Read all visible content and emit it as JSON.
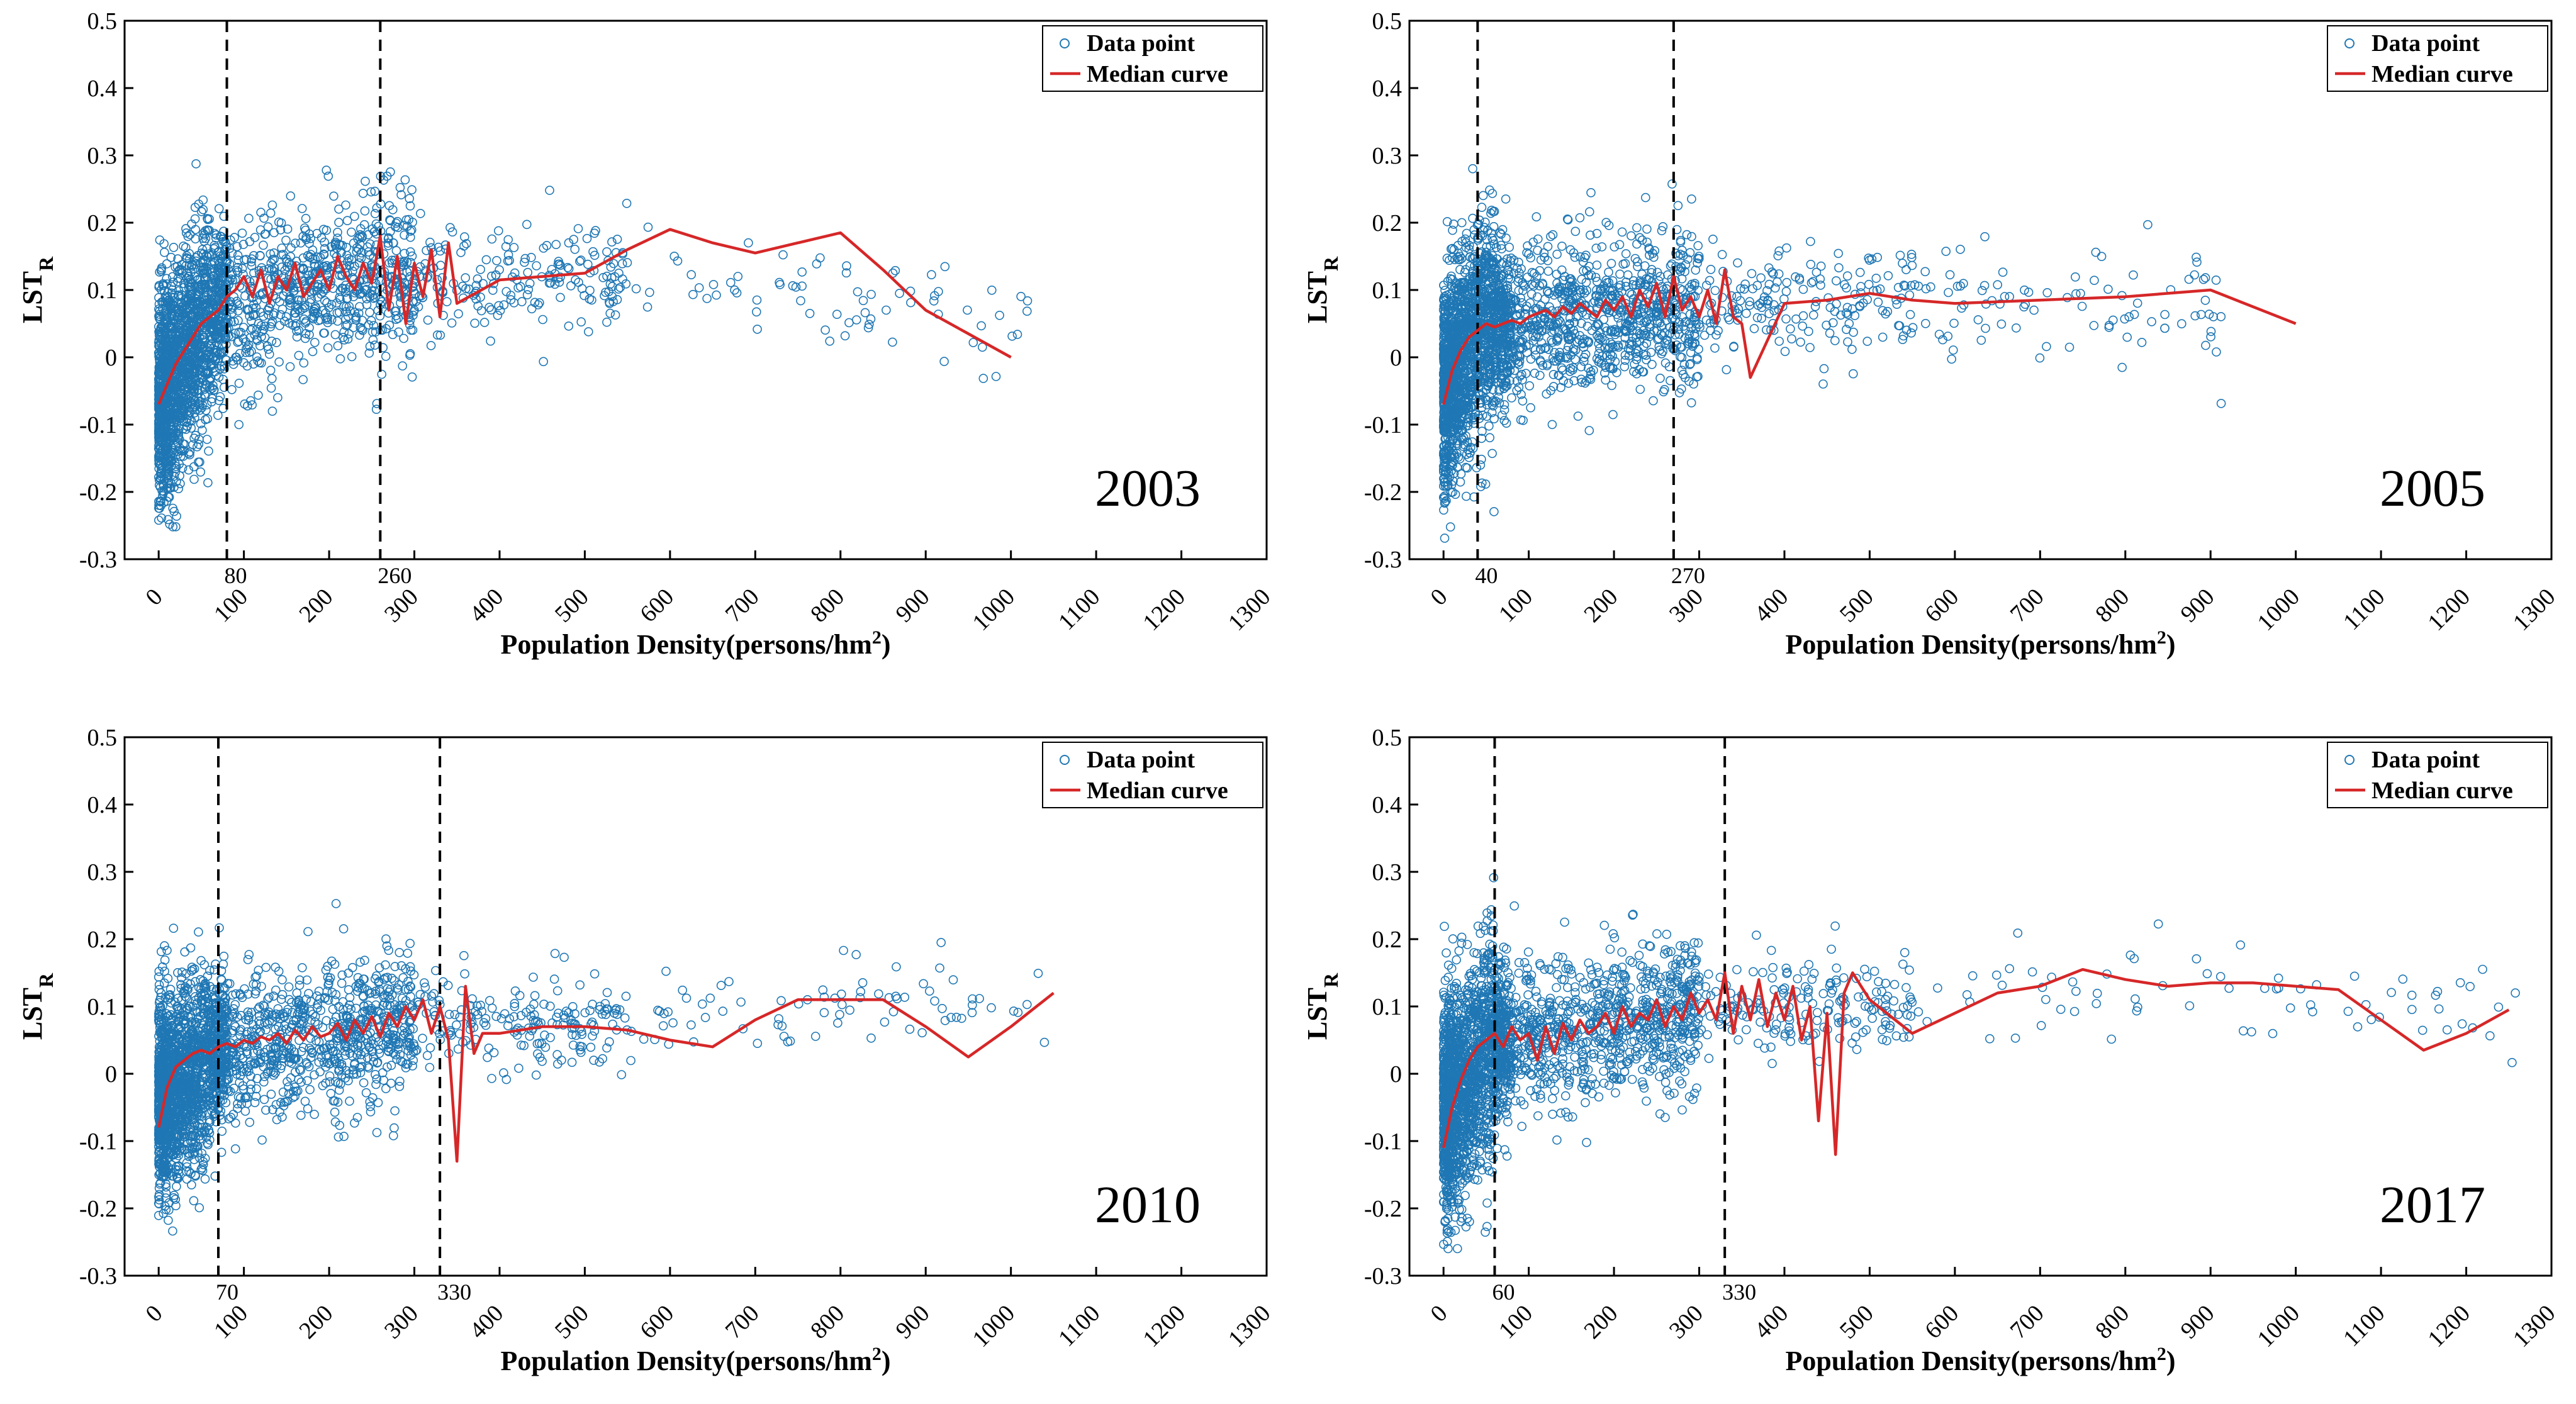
{
  "colors": {
    "points": "#1f77b4",
    "median": "#d62728",
    "threshold": "#000000"
  },
  "legend": {
    "points_label": "Data point",
    "median_label": "Median curve",
    "placement": "top-right"
  },
  "chart_data": [
    {
      "type": "scatter",
      "year_label": "2003",
      "xlabel": "Population Density(persons/hm",
      "xlabel_sup": "2",
      "xlabel_close": ")",
      "ylabel": "LST",
      "ylabel_sub": "R",
      "xlim": [
        -40,
        1300
      ],
      "ylim": [
        -0.3,
        0.5
      ],
      "x_ticks": [
        "0",
        "100",
        "200",
        "300",
        "400",
        "500",
        "600",
        "700",
        "800",
        "900",
        "1000",
        "1100",
        "1200",
        "1300"
      ],
      "y_ticks": [
        "-0.3",
        "-0.2",
        "-0.1",
        "0",
        "0.1",
        "0.2",
        "0.3",
        "0.4",
        "0.5"
      ],
      "thresholds": [
        {
          "value": 80,
          "label": "80"
        },
        {
          "value": 260,
          "label": "260"
        }
      ],
      "series": [
        {
          "name": "Median curve",
          "x": [
            0,
            10,
            20,
            30,
            40,
            50,
            60,
            70,
            80,
            90,
            100,
            110,
            120,
            130,
            140,
            150,
            160,
            170,
            180,
            190,
            200,
            210,
            220,
            230,
            240,
            250,
            260,
            270,
            280,
            290,
            300,
            310,
            320,
            330,
            340,
            350,
            400,
            450,
            500,
            550,
            600,
            650,
            700,
            750,
            800,
            850,
            900,
            950,
            1000
          ],
          "y": [
            -0.07,
            -0.04,
            -0.01,
            0.01,
            0.03,
            0.05,
            0.06,
            0.07,
            0.09,
            0.1,
            0.12,
            0.09,
            0.13,
            0.08,
            0.12,
            0.1,
            0.14,
            0.09,
            0.11,
            0.13,
            0.1,
            0.15,
            0.12,
            0.1,
            0.14,
            0.11,
            0.18,
            0.07,
            0.15,
            0.05,
            0.14,
            0.09,
            0.16,
            0.06,
            0.17,
            0.08,
            0.115,
            0.12,
            0.125,
            0.16,
            0.19,
            0.17,
            0.155,
            0.17,
            0.185,
            0.13,
            0.07,
            0.035,
            0.0
          ]
        }
      ],
      "scatter_profile": {
        "base": [
          [
            0,
            -0.07
          ],
          [
            40,
            0.03
          ],
          [
            80,
            0.08
          ],
          [
            150,
            0.1
          ],
          [
            260,
            0.12
          ],
          [
            400,
            0.11
          ],
          [
            600,
            0.13
          ],
          [
            1000,
            0.05
          ]
        ],
        "spread": 0.12,
        "count": 2600,
        "max_x": 1020
      }
    },
    {
      "type": "scatter",
      "year_label": "2005",
      "xlabel": "Population Density(persons/hm",
      "xlabel_sup": "2",
      "xlabel_close": ")",
      "ylabel": "LST",
      "ylabel_sub": "R",
      "xlim": [
        -40,
        1300
      ],
      "ylim": [
        -0.3,
        0.5
      ],
      "x_ticks": [
        "0",
        "100",
        "200",
        "300",
        "400",
        "500",
        "600",
        "700",
        "800",
        "900",
        "1000",
        "1100",
        "1200",
        "1300"
      ],
      "y_ticks": [
        "-0.3",
        "-0.2",
        "-0.1",
        "0",
        "0.1",
        "0.2",
        "0.3",
        "0.4",
        "0.5"
      ],
      "thresholds": [
        {
          "value": 40,
          "label": "40"
        },
        {
          "value": 270,
          "label": "270"
        }
      ],
      "series": [
        {
          "name": "Median curve",
          "x": [
            0,
            10,
            20,
            30,
            40,
            50,
            60,
            70,
            80,
            90,
            100,
            110,
            120,
            130,
            140,
            150,
            160,
            170,
            180,
            190,
            200,
            210,
            220,
            230,
            240,
            250,
            260,
            270,
            280,
            290,
            300,
            310,
            320,
            330,
            340,
            350,
            360,
            400,
            450,
            500,
            550,
            600,
            700,
            800,
            900,
            1000
          ],
          "y": [
            -0.07,
            -0.02,
            0.01,
            0.03,
            0.04,
            0.05,
            0.045,
            0.05,
            0.055,
            0.05,
            0.06,
            0.065,
            0.07,
            0.06,
            0.075,
            0.065,
            0.08,
            0.07,
            0.06,
            0.085,
            0.07,
            0.09,
            0.06,
            0.1,
            0.075,
            0.11,
            0.06,
            0.12,
            0.07,
            0.09,
            0.06,
            0.1,
            0.05,
            0.13,
            0.06,
            0.05,
            -0.03,
            0.08,
            0.085,
            0.095,
            0.085,
            0.08,
            0.085,
            0.09,
            0.1,
            0.05
          ]
        }
      ],
      "scatter_profile": {
        "base": [
          [
            0,
            -0.05
          ],
          [
            40,
            0.04
          ],
          [
            150,
            0.06
          ],
          [
            270,
            0.07
          ],
          [
            400,
            0.08
          ],
          [
            700,
            0.08
          ],
          [
            1000,
            0.05
          ]
        ],
        "spread": 0.12,
        "count": 2800,
        "max_x": 920
      }
    },
    {
      "type": "scatter",
      "year_label": "2010",
      "xlabel": "Population Density(persons/hm",
      "xlabel_sup": "2",
      "xlabel_close": ")",
      "ylabel": "LST",
      "ylabel_sub": "R",
      "xlim": [
        -40,
        1300
      ],
      "ylim": [
        -0.3,
        0.5
      ],
      "x_ticks": [
        "0",
        "100",
        "200",
        "300",
        "400",
        "500",
        "600",
        "700",
        "800",
        "900",
        "1000",
        "1100",
        "1200",
        "1300"
      ],
      "y_ticks": [
        "-0.3",
        "-0.2",
        "-0.1",
        "0",
        "0.1",
        "0.2",
        "0.3",
        "0.4",
        "0.5"
      ],
      "thresholds": [
        {
          "value": 70,
          "label": "70"
        },
        {
          "value": 330,
          "label": "330"
        }
      ],
      "series": [
        {
          "name": "Median curve",
          "x": [
            0,
            10,
            20,
            30,
            40,
            50,
            60,
            70,
            80,
            90,
            100,
            110,
            120,
            130,
            140,
            150,
            160,
            170,
            180,
            190,
            200,
            210,
            220,
            230,
            240,
            250,
            260,
            270,
            280,
            290,
            300,
            310,
            320,
            330,
            340,
            350,
            360,
            370,
            380,
            400,
            450,
            500,
            550,
            600,
            650,
            700,
            750,
            800,
            850,
            900,
            950,
            1000,
            1050
          ],
          "y": [
            -0.08,
            -0.02,
            0.01,
            0.02,
            0.03,
            0.035,
            0.03,
            0.04,
            0.045,
            0.04,
            0.05,
            0.045,
            0.055,
            0.05,
            0.06,
            0.045,
            0.065,
            0.05,
            0.07,
            0.055,
            0.06,
            0.075,
            0.05,
            0.08,
            0.06,
            0.085,
            0.055,
            0.09,
            0.07,
            0.1,
            0.08,
            0.11,
            0.06,
            0.1,
            0.05,
            -0.13,
            0.13,
            0.03,
            0.06,
            0.06,
            0.07,
            0.07,
            0.065,
            0.05,
            0.04,
            0.08,
            0.11,
            0.11,
            0.11,
            0.07,
            0.025,
            0.07,
            0.12
          ]
        }
      ],
      "scatter_profile": {
        "base": [
          [
            0,
            -0.04
          ],
          [
            70,
            0.03
          ],
          [
            200,
            0.06
          ],
          [
            330,
            0.08
          ],
          [
            500,
            0.07
          ],
          [
            800,
            0.1
          ],
          [
            1050,
            0.12
          ]
        ],
        "spread": 0.11,
        "count": 2700,
        "max_x": 1050
      }
    },
    {
      "type": "scatter",
      "year_label": "2017",
      "xlabel": "Population Density(persons/hm",
      "xlabel_sup": "2",
      "xlabel_close": ")",
      "ylabel": "LST",
      "ylabel_sub": "R",
      "xlim": [
        -40,
        1300
      ],
      "ylim": [
        -0.3,
        0.5
      ],
      "x_ticks": [
        "0",
        "100",
        "200",
        "300",
        "400",
        "500",
        "600",
        "700",
        "800",
        "900",
        "1000",
        "1100",
        "1200",
        "1300"
      ],
      "y_ticks": [
        "-0.3",
        "-0.2",
        "-0.1",
        "0",
        "0.1",
        "0.2",
        "0.3",
        "0.4",
        "0.5"
      ],
      "thresholds": [
        {
          "value": 60,
          "label": "60"
        },
        {
          "value": 330,
          "label": "330"
        }
      ],
      "series": [
        {
          "name": "Median curve",
          "x": [
            0,
            10,
            20,
            30,
            40,
            50,
            60,
            70,
            80,
            90,
            100,
            110,
            120,
            130,
            140,
            150,
            160,
            170,
            180,
            190,
            200,
            210,
            220,
            230,
            240,
            250,
            260,
            270,
            280,
            290,
            300,
            310,
            320,
            330,
            340,
            350,
            360,
            370,
            380,
            390,
            400,
            410,
            420,
            430,
            440,
            450,
            460,
            470,
            480,
            500,
            550,
            600,
            650,
            700,
            750,
            800,
            850,
            900,
            950,
            1000,
            1050,
            1100,
            1150,
            1200,
            1250
          ],
          "y": [
            -0.11,
            -0.05,
            -0.01,
            0.02,
            0.04,
            0.05,
            0.06,
            0.04,
            0.07,
            0.05,
            0.06,
            0.02,
            0.07,
            0.03,
            0.075,
            0.05,
            0.08,
            0.06,
            0.07,
            0.09,
            0.06,
            0.1,
            0.07,
            0.09,
            0.08,
            0.11,
            0.07,
            0.1,
            0.08,
            0.12,
            0.09,
            0.11,
            0.08,
            0.15,
            0.06,
            0.13,
            0.08,
            0.14,
            0.07,
            0.12,
            0.08,
            0.13,
            0.05,
            0.1,
            -0.07,
            0.09,
            -0.12,
            0.12,
            0.15,
            0.11,
            0.06,
            0.09,
            0.12,
            0.13,
            0.155,
            0.14,
            0.13,
            0.135,
            0.135,
            0.13,
            0.125,
            0.08,
            0.035,
            0.06,
            0.095
          ]
        }
      ],
      "scatter_profile": {
        "base": [
          [
            0,
            -0.06
          ],
          [
            60,
            0.05
          ],
          [
            200,
            0.07
          ],
          [
            330,
            0.1
          ],
          [
            600,
            0.1
          ],
          [
            900,
            0.12
          ],
          [
            1250,
            0.1
          ]
        ],
        "spread": 0.12,
        "count": 2700,
        "max_x": 1270
      }
    }
  ]
}
